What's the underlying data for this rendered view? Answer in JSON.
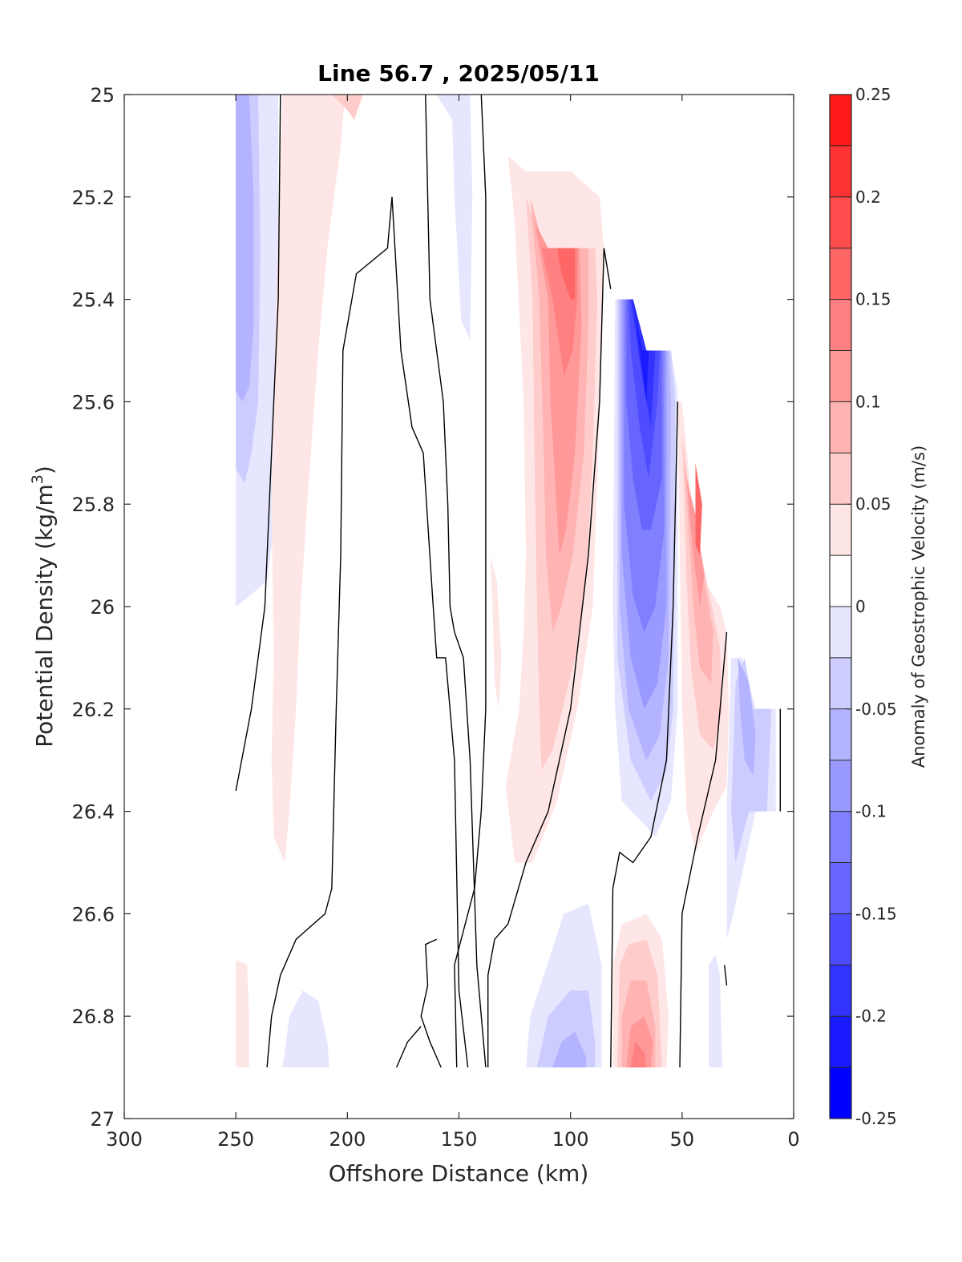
{
  "chart_data": {
    "type": "contour",
    "title": "Line 56.7 , 2025/05/11",
    "xlabel": "Offshore Distance (km)",
    "ylabel": "Potential Density (kg/m",
    "ylabel_superscript": "3",
    "ylabel_suffix": ")",
    "xlim": [
      300,
      0
    ],
    "ylim": [
      25,
      27
    ],
    "x_reversed": true,
    "y_reversed": true,
    "grid": false,
    "xticks": [
      300,
      250,
      200,
      150,
      100,
      50,
      0
    ],
    "xtick_labels": [
      "300",
      "250",
      "200",
      "150",
      "100",
      "50",
      "0"
    ],
    "yticks": [
      25,
      25.2,
      25.4,
      25.6,
      25.8,
      26,
      26.2,
      26.4,
      26.6,
      26.8,
      27
    ],
    "ytick_labels": [
      "25",
      "25.2",
      "25.4",
      "25.6",
      "25.8",
      "26",
      "26.2",
      "26.4",
      "26.6",
      "26.8",
      "27"
    ],
    "colorbar": {
      "label": "Anomaly of Geostrophic Velocity (m/s)",
      "range": [
        -0.25,
        0.25
      ],
      "ticks": [
        0.25,
        0.2,
        0.15,
        0.1,
        0.05,
        0,
        -0.05,
        -0.1,
        -0.15,
        -0.2,
        -0.25
      ],
      "tick_labels": [
        "0.25",
        "0.2",
        "0.15",
        "0.1",
        "0.05",
        "0",
        "-0.05",
        "-0.1",
        "-0.15",
        "-0.2",
        "-0.25"
      ],
      "levels": [
        -0.25,
        -0.225,
        -0.2,
        -0.175,
        -0.15,
        -0.125,
        -0.1,
        -0.075,
        -0.05,
        -0.025,
        0.025,
        0.05,
        0.075,
        0.1,
        0.125,
        0.15,
        0.175,
        0.2,
        0.225,
        0.25
      ],
      "band_colors": [
        "#0000ff",
        "#1a1aff",
        "#3333ff",
        "#4d4dff",
        "#6666ff",
        "#8080ff",
        "#9999ff",
        "#b3b3ff",
        "#ccccff",
        "#e6e6ff",
        "#ffffff",
        "#ffe6e6",
        "#ffcccc",
        "#ffb3b3",
        "#ff9999",
        "#ff8080",
        "#ff6666",
        "#ff4d4d",
        "#ff3333",
        "#ff1a1a"
      ]
    },
    "features": [
      {
        "x": [
          250,
          230
        ],
        "y": [
          25,
          26
        ],
        "value": -0.08,
        "level": 6
      },
      {
        "x": [
          230,
          205
        ],
        "y": [
          25,
          26.5
        ],
        "value": 0.03,
        "level": 11
      },
      {
        "x": [
          160,
          143
        ],
        "y": [
          25,
          25.5
        ],
        "value": -0.03,
        "level": 9
      },
      {
        "x": [
          125,
          85
        ],
        "y": [
          25.2,
          26.5
        ],
        "value": 0.15,
        "level": 15
      },
      {
        "x": [
          80,
          55
        ],
        "y": [
          25.4,
          26.45
        ],
        "value": -0.24,
        "level": 0
      },
      {
        "x": [
          52,
          30
        ],
        "y": [
          25.6,
          26.35
        ],
        "value": 0.14,
        "level": 16
      },
      {
        "x": [
          30,
          8
        ],
        "y": [
          26.1,
          26.65
        ],
        "value": -0.1,
        "level": 6
      },
      {
        "x": [
          120,
          85
        ],
        "y": [
          26.6,
          26.9
        ],
        "value": -0.1,
        "level": 6
      },
      {
        "x": [
          82,
          58
        ],
        "y": [
          26.6,
          26.9
        ],
        "value": 0.14,
        "level": 16
      },
      {
        "x": [
          230,
          208
        ],
        "y": [
          26.75,
          26.9
        ],
        "value": -0.03,
        "level": 9
      },
      {
        "x": [
          250,
          243
        ],
        "y": [
          26.68,
          26.9
        ],
        "value": 0.03,
        "level": 11
      },
      {
        "x": [
          40,
          32
        ],
        "y": [
          26.68,
          26.9
        ],
        "value": -0.03,
        "level": 9
      },
      {
        "x": [
          135,
          130
        ],
        "y": [
          25.9,
          26.2
        ],
        "value": 0.03,
        "level": 11
      }
    ],
    "zero_contours": 11
  }
}
